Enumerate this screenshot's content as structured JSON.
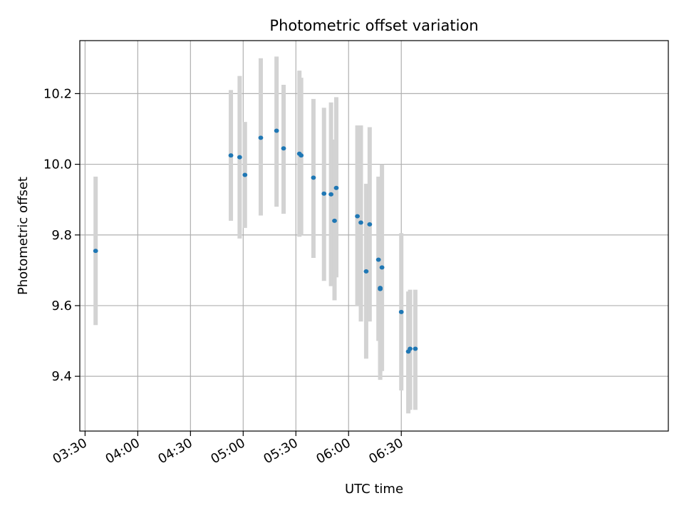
{
  "chart_data": {
    "type": "scatter",
    "title": "Photometric offset variation",
    "xlabel": "UTC time",
    "ylabel": "Photometric offset",
    "x_unit": "minutes since 03:30 UTC",
    "xlim": [
      -3,
      332
    ],
    "ylim": [
      9.245,
      10.35
    ],
    "x_ticks": [
      {
        "value": 0,
        "label": "03:30"
      },
      {
        "value": 30,
        "label": "04:00"
      },
      {
        "value": 60,
        "label": "04:30"
      },
      {
        "value": 90,
        "label": "05:00"
      },
      {
        "value": 120,
        "label": "05:30"
      },
      {
        "value": 150,
        "label": "06:00"
      },
      {
        "value": 180,
        "label": "06:30"
      }
    ],
    "y_ticks": [
      {
        "value": 9.4,
        "label": "9.4"
      },
      {
        "value": 9.6,
        "label": "9.6"
      },
      {
        "value": 9.8,
        "label": "9.8"
      },
      {
        "value": 10.0,
        "label": "10.0"
      },
      {
        "value": 10.2,
        "label": "10.2"
      }
    ],
    "grid": true,
    "marker_color": "#1f77b4",
    "errorbar_color": "#d3d3d3",
    "points": [
      {
        "x": "03:36",
        "y": 9.755,
        "yerr": [
          9.545,
          9.965
        ]
      },
      {
        "x": "04:53",
        "y": 10.025,
        "yerr": [
          9.84,
          10.21
        ]
      },
      {
        "x": "04:58",
        "y": 10.02,
        "yerr": [
          9.79,
          10.25
        ]
      },
      {
        "x": "05:01",
        "y": 9.97,
        "yerr": [
          9.82,
          10.12
        ]
      },
      {
        "x": "05:10",
        "y": 10.075,
        "yerr": [
          9.855,
          10.3
        ]
      },
      {
        "x": "05:19",
        "y": 10.095,
        "yerr": [
          9.88,
          10.305
        ]
      },
      {
        "x": "05:23",
        "y": 10.045,
        "yerr": [
          9.86,
          10.225
        ]
      },
      {
        "x": "05:32",
        "y": 10.03,
        "yerr": [
          9.795,
          10.265
        ]
      },
      {
        "x": "05:33",
        "y": 10.025,
        "yerr": [
          9.8,
          10.245
        ]
      },
      {
        "x": "05:40",
        "y": 9.962,
        "yerr": [
          9.735,
          10.185
        ]
      },
      {
        "x": "05:46",
        "y": 9.917,
        "yerr": [
          9.67,
          10.16
        ]
      },
      {
        "x": "05:50",
        "y": 9.915,
        "yerr": [
          9.655,
          10.175
        ]
      },
      {
        "x": "05:52",
        "y": 9.84,
        "yerr": [
          9.615,
          10.07
        ]
      },
      {
        "x": "05:53",
        "y": 9.933,
        "yerr": [
          9.68,
          10.19
        ]
      },
      {
        "x": "06:05",
        "y": 9.853,
        "yerr": [
          9.6,
          10.11
        ]
      },
      {
        "x": "06:07",
        "y": 9.835,
        "yerr": [
          9.555,
          10.11
        ]
      },
      {
        "x": "06:10",
        "y": 9.697,
        "yerr": [
          9.45,
          9.945
        ]
      },
      {
        "x": "06:12",
        "y": 9.83,
        "yerr": [
          9.555,
          10.105
        ]
      },
      {
        "x": "06:17",
        "y": 9.73,
        "yerr": [
          9.5,
          9.965
        ]
      },
      {
        "x": "06:18",
        "y": 9.65,
        "yerr": [
          9.41,
          9.885
        ]
      },
      {
        "x": "06:18",
        "y": 9.647,
        "yerr": [
          9.39,
          9.905
        ]
      },
      {
        "x": "06:19",
        "y": 9.708,
        "yerr": [
          9.415,
          10.0
        ]
      },
      {
        "x": "06:30",
        "y": 9.582,
        "yerr": [
          9.36,
          9.805
        ]
      },
      {
        "x": "06:34",
        "y": 9.47,
        "yerr": [
          9.295,
          9.64
        ]
      },
      {
        "x": "06:35",
        "y": 9.478,
        "yerr": [
          9.305,
          9.645
        ]
      },
      {
        "x": "06:38",
        "y": 9.478,
        "yerr": [
          9.305,
          9.645
        ]
      }
    ]
  }
}
